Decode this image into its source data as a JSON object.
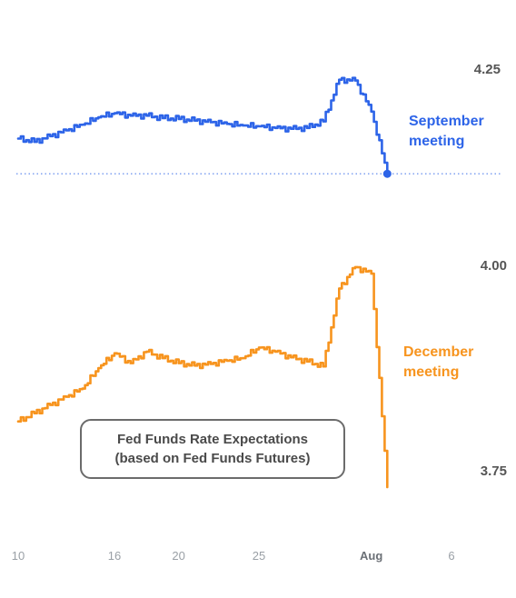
{
  "chart_data": [
    {
      "type": "line",
      "title": "Fed Funds Rate Expectations",
      "subtitle": "(based on Fed Funds Futures)",
      "x_ticks": [
        "10",
        "16",
        "20",
        "25",
        "Aug",
        "6"
      ],
      "x_bold_ticks": [
        "Aug"
      ],
      "y_ticks": [
        "4.25"
      ],
      "ylim": [
        4.11,
        4.26
      ],
      "series": [
        {
          "name": "September meeting",
          "label_lines": [
            "September",
            "meeting"
          ],
          "color": "#2d64e8",
          "end_marker": true,
          "baseline": "dotted",
          "x": [
            "Jul 10",
            "Jul 11",
            "Jul 12",
            "Jul 13",
            "Jul 14",
            "Jul 15",
            "Jul 16",
            "Jul 17",
            "Jul 18",
            "Jul 19",
            "Jul 20",
            "Jul 21",
            "Jul 22",
            "Jul 23",
            "Jul 24",
            "Jul 25",
            "Jul 26",
            "Jul 27",
            "Jul 28",
            "Jul 29",
            "Jul 30",
            "Jul 31",
            "Aug 1",
            "Aug 2"
          ],
          "values": [
            4.165,
            4.161,
            4.168,
            4.175,
            4.182,
            4.191,
            4.196,
            4.193,
            4.193,
            4.19,
            4.189,
            4.187,
            4.185,
            4.183,
            4.181,
            4.18,
            4.178,
            4.177,
            4.178,
            4.186,
            4.237,
            4.236,
            4.198,
            4.122
          ]
        }
      ]
    },
    {
      "type": "line",
      "y_ticks": [
        "4.00",
        "3.75"
      ],
      "ylim": [
        3.72,
        4.02
      ],
      "series": [
        {
          "name": "December meeting",
          "label_lines": [
            "December",
            "meeting"
          ],
          "color": "#f7941e",
          "end_marker": false,
          "x": [
            "Jul 10",
            "Jul 11",
            "Jul 12",
            "Jul 13",
            "Jul 14",
            "Jul 15",
            "Jul 16",
            "Jul 17",
            "Jul 18",
            "Jul 19",
            "Jul 20",
            "Jul 21",
            "Jul 22",
            "Jul 23",
            "Jul 24",
            "Jul 25",
            "Jul 26",
            "Jul 27",
            "Jul 28",
            "Jul 29",
            "Jul 30",
            "Jul 31",
            "Aug 1",
            "Aug 2"
          ],
          "values": [
            3.81,
            3.82,
            3.83,
            3.84,
            3.85,
            3.875,
            3.893,
            3.881,
            3.895,
            3.887,
            3.881,
            3.878,
            3.88,
            3.884,
            3.887,
            3.9,
            3.895,
            3.888,
            3.883,
            3.877,
            3.972,
            3.998,
            3.99,
            3.73
          ]
        }
      ]
    }
  ]
}
